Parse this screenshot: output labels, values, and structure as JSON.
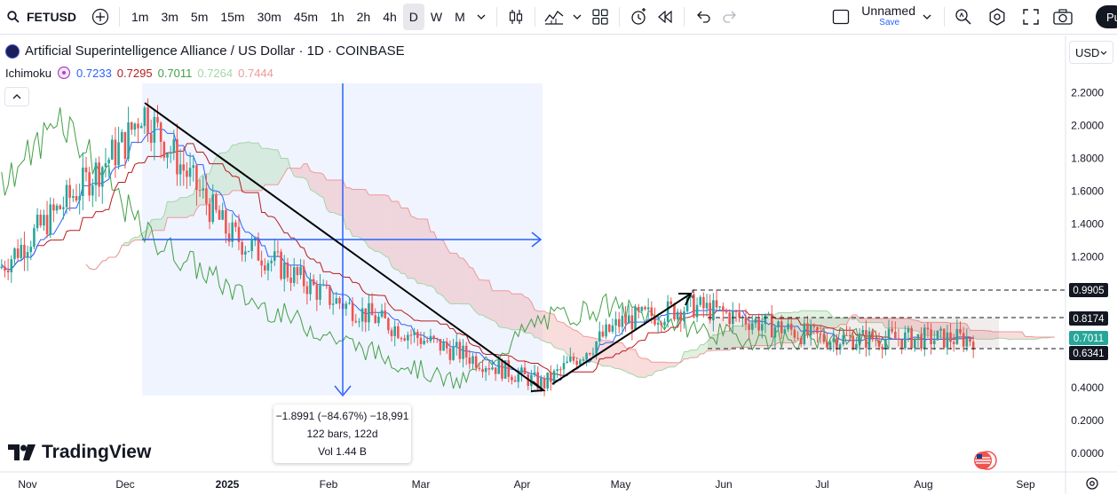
{
  "toolbar": {
    "symbol": "FETUSD",
    "timeframes": [
      "1m",
      "3m",
      "5m",
      "15m",
      "30m",
      "45m",
      "1h",
      "2h",
      "4h",
      "D",
      "W",
      "M"
    ],
    "active_timeframe": "D",
    "layout_name": "Unnamed",
    "save_label": "Save",
    "publish_label": "Pu"
  },
  "legend": {
    "title": "Artificial Superintelligence Alliance / US Dollar · 1D · COINBASE",
    "indicator_name": "Ichimoku",
    "indicator_values": [
      "0.7233",
      "0.7295",
      "0.7011",
      "0.7264",
      "0.7444"
    ],
    "indicator_colors": [
      "#2962ff",
      "#b71c1c",
      "#43a047",
      "#a5d6a7",
      "#ef9a9a"
    ]
  },
  "currency": "USD",
  "measure": {
    "line1": "−1.8991 (−84.67%) −18,991",
    "line2": "122 bars, 122d",
    "line3": "Vol 1.44 B"
  },
  "brand": "TradingView",
  "colors": {
    "up": "#26a69a",
    "down": "#ef5350",
    "tenkan": "#2962ff",
    "kijun": "#b71c1c",
    "chikou": "#43a047",
    "cloud_bull": "#a5d6a7",
    "cloud_bear": "#ef9a9a",
    "measure": "#2962ff"
  },
  "chart_data": {
    "type": "candlestick",
    "y_ticks": [
      "2.2000",
      "2.0000",
      "1.8000",
      "1.6000",
      "1.4000",
      "1.2000",
      "0.4000",
      "0.2000",
      "0.0000"
    ],
    "x_ticks": [
      "Nov",
      "Dec",
      "2025",
      "Feb",
      "Mar",
      "Apr",
      "May",
      "Jun",
      "Jul",
      "Aug",
      "Sep"
    ],
    "price_labels": [
      {
        "value": "0.9905",
        "kind": "level"
      },
      {
        "value": "0.8174",
        "kind": "level"
      },
      {
        "value": "0.7011",
        "kind": "last"
      },
      {
        "value": "0.6341",
        "kind": "level"
      }
    ],
    "ylim": [
      0,
      2.3
    ],
    "approx_close_path": [
      {
        "date": "2024-11-01",
        "close": 1.3
      },
      {
        "date": "2024-12-01",
        "close": 1.9
      },
      {
        "date": "2024-12-08",
        "close": 2.1
      },
      {
        "date": "2025-01-01",
        "close": 1.35
      },
      {
        "date": "2025-02-01",
        "close": 0.95
      },
      {
        "date": "2025-03-01",
        "close": 0.7
      },
      {
        "date": "2025-04-08",
        "close": 0.42
      },
      {
        "date": "2025-05-01",
        "close": 0.8
      },
      {
        "date": "2025-05-25",
        "close": 0.9
      },
      {
        "date": "2025-07-01",
        "close": 0.7
      },
      {
        "date": "2025-08-15",
        "close": 0.7
      }
    ]
  }
}
